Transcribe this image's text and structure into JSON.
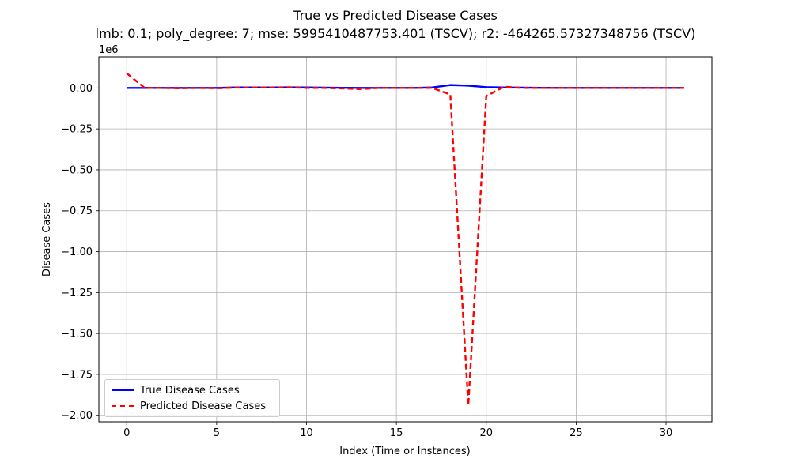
{
  "chart_data": {
    "type": "line",
    "title": "True vs Predicted Disease Cases",
    "subtitle": "lmb: 0.1; poly_degree: 7; mse: 5995410487753.401 (TSCV); r2: -464265.57327348756 (TSCV)",
    "xlabel": "Index (Time or Instances)",
    "ylabel": "Disease Cases",
    "y_offset_label": "1e6",
    "xlim": [
      -1.55,
      32.55
    ],
    "ylim": [
      -2.04,
      0.19
    ],
    "y_scale_factor": 1000000,
    "x_ticks": [
      0,
      5,
      10,
      15,
      20,
      25,
      30
    ],
    "x_tick_labels": [
      "0",
      "5",
      "10",
      "15",
      "20",
      "25",
      "30"
    ],
    "y_ticks": [
      0.0,
      -0.25,
      -0.5,
      -0.75,
      -1.0,
      -1.25,
      -1.5,
      -1.75,
      -2.0
    ],
    "y_tick_labels": [
      "0.00",
      "−0.25",
      "−0.50",
      "−0.75",
      "−1.00",
      "−1.25",
      "−1.50",
      "−1.75",
      "−2.00"
    ],
    "grid": true,
    "legend_position": "lower-left",
    "series": [
      {
        "name": "True Disease Cases",
        "color": "#0000ff",
        "style": "solid",
        "x": [
          0,
          1,
          2,
          3,
          4,
          5,
          6,
          7,
          8,
          9,
          10,
          11,
          12,
          13,
          14,
          15,
          16,
          17,
          18,
          19,
          20,
          21,
          22,
          23,
          24,
          25,
          26,
          27,
          28,
          29,
          30,
          31
        ],
        "values": [
          0.0,
          0.0,
          0.0,
          0.0,
          0.0,
          0.0,
          0.003,
          0.003,
          0.003,
          0.004,
          0.003,
          0.002,
          0.001,
          0.0,
          0.0,
          0.0,
          0.0,
          0.003,
          0.018,
          0.014,
          0.005,
          0.003,
          0.002,
          0.001,
          0.0,
          0.0,
          0.0,
          0.0,
          0.0,
          0.0,
          0.0,
          0.0
        ]
      },
      {
        "name": "Predicted Disease Cases",
        "color": "#ff0000",
        "style": "dashed",
        "x": [
          0,
          1,
          2,
          3,
          4,
          5,
          6,
          7,
          8,
          9,
          10,
          11,
          12,
          13,
          14,
          15,
          16,
          17,
          18,
          19,
          20,
          21,
          22,
          23,
          24,
          25,
          26,
          27,
          28,
          29,
          30,
          31
        ],
        "values": [
          0.09,
          0.0,
          0.0,
          -0.002,
          0.0,
          -0.002,
          0.002,
          0.003,
          0.003,
          0.004,
          0.0,
          0.0,
          -0.003,
          -0.007,
          0.0,
          0.0,
          0.0,
          0.0,
          -0.04,
          -1.94,
          -0.05,
          0.008,
          0.0,
          0.0,
          0.0,
          0.0,
          0.0,
          0.0,
          0.0,
          0.0,
          0.0,
          0.0
        ]
      }
    ]
  }
}
